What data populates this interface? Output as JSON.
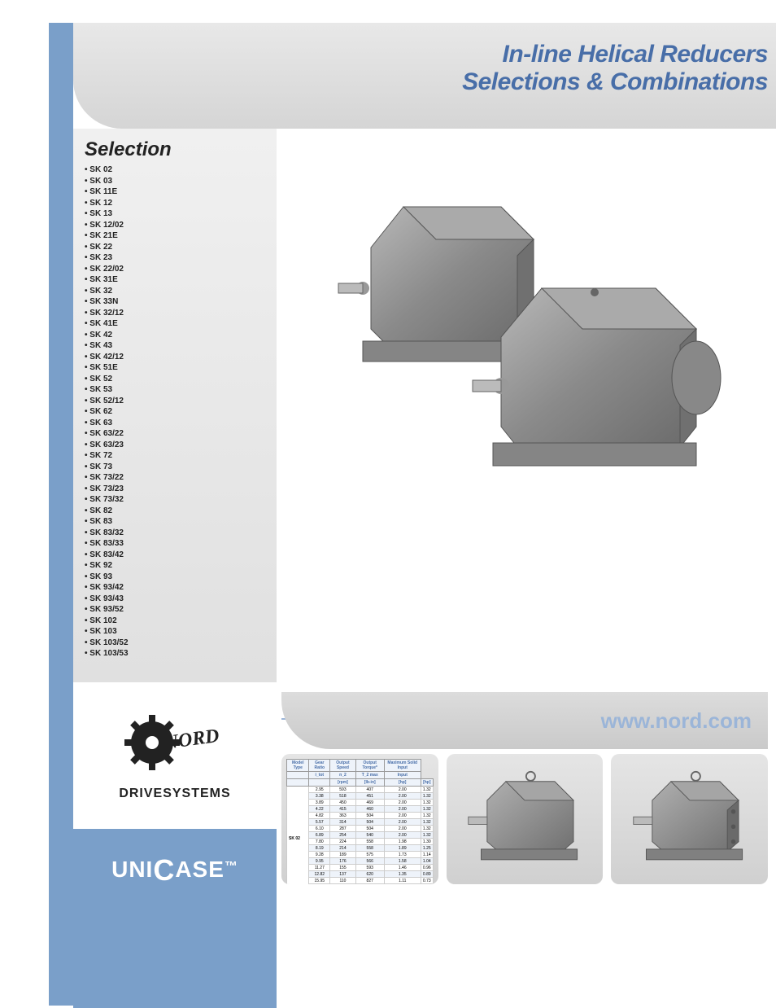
{
  "title": {
    "line1": "In-line Helical Reducers",
    "line2": "Selections & Combinations"
  },
  "selection": {
    "heading": "Selection",
    "items": [
      "SK 02",
      "SK 03",
      "SK 11E",
      "SK 12",
      "SK 13",
      "SK 12/02",
      "SK 21E",
      "SK 22",
      "SK 23",
      "SK 22/02",
      "SK 31E",
      "SK 32",
      "SK 33N",
      "SK 32/12",
      "SK 41E",
      "SK 42",
      "SK 43",
      "SK 42/12",
      "SK 51E",
      "SK 52",
      "SK 53",
      "SK 52/12",
      "SK 62",
      "SK 63",
      "SK 63/22",
      "SK 63/23",
      "SK 72",
      "SK 73",
      "SK 73/22",
      "SK 73/23",
      "SK 73/32",
      "SK 82",
      "SK 83",
      "SK 83/32",
      "SK 83/33",
      "SK 83/42",
      "SK 92",
      "SK 93",
      "SK 93/42",
      "SK 93/43",
      "SK 93/52",
      "SK 102",
      "SK 103",
      "SK 103/52",
      "SK 103/53"
    ]
  },
  "logo": {
    "brand": "NORD",
    "sub": "DRIVESYSTEMS"
  },
  "unicase": {
    "pre": "UNI",
    "c": "C",
    "post": "ASE",
    "tm": "™"
  },
  "url": "www.nord.com",
  "spec_table": {
    "model": "SK 02",
    "headers": [
      "Model Type",
      "Gear Ratio",
      "Output Speed",
      "Output Torque*",
      "Maximum Solid Input"
    ],
    "sub1": [
      "",
      "i_tot",
      "n_2",
      "T_2 max",
      "Input"
    ],
    "sub2": [
      "",
      "",
      "1750 rpm",
      "",
      "1750 rpm 1150 rpm"
    ],
    "units": [
      "",
      "",
      "[rpm]",
      "[lb-in]",
      "[hp]",
      "[hp]"
    ],
    "rows": [
      [
        "2.95",
        "593",
        "407",
        "2.00",
        "1.32"
      ],
      [
        "3.38",
        "518",
        "451",
        "2.00",
        "1.32"
      ],
      [
        "3.89",
        "450",
        "469",
        "2.00",
        "1.32"
      ],
      [
        "4.22",
        "415",
        "460",
        "2.00",
        "1.32"
      ],
      [
        "4.82",
        "363",
        "504",
        "2.00",
        "1.32"
      ],
      [
        "5.57",
        "314",
        "504",
        "2.00",
        "1.32"
      ],
      [
        "6.10",
        "287",
        "504",
        "2.00",
        "1.32"
      ],
      [
        "6.89",
        "254",
        "540",
        "2.00",
        "1.32"
      ],
      [
        "7.80",
        "224",
        "558",
        "1.98",
        "1.30"
      ],
      [
        "8.19",
        "214",
        "558",
        "1.89",
        "1.25"
      ],
      [
        "9.28",
        "189",
        "575",
        "1.73",
        "1.14"
      ],
      [
        "9.95",
        "176",
        "566",
        "1.58",
        "1.04"
      ],
      [
        "11.27",
        "155",
        "593",
        "1.46",
        "0.96"
      ],
      [
        "12.82",
        "137",
        "620",
        "1.35",
        "0.89"
      ],
      [
        "15.95",
        "110",
        "827",
        "1.11",
        "0.73"
      ],
      [
        "20.59",
        "85",
        "855",
        "0.88",
        ""
      ]
    ]
  },
  "colors": {
    "accent_blue": "#7a9fc9",
    "title_blue": "#486ea8",
    "grey_light": "#e5e5e5",
    "grey_dark": "#cacaca"
  }
}
